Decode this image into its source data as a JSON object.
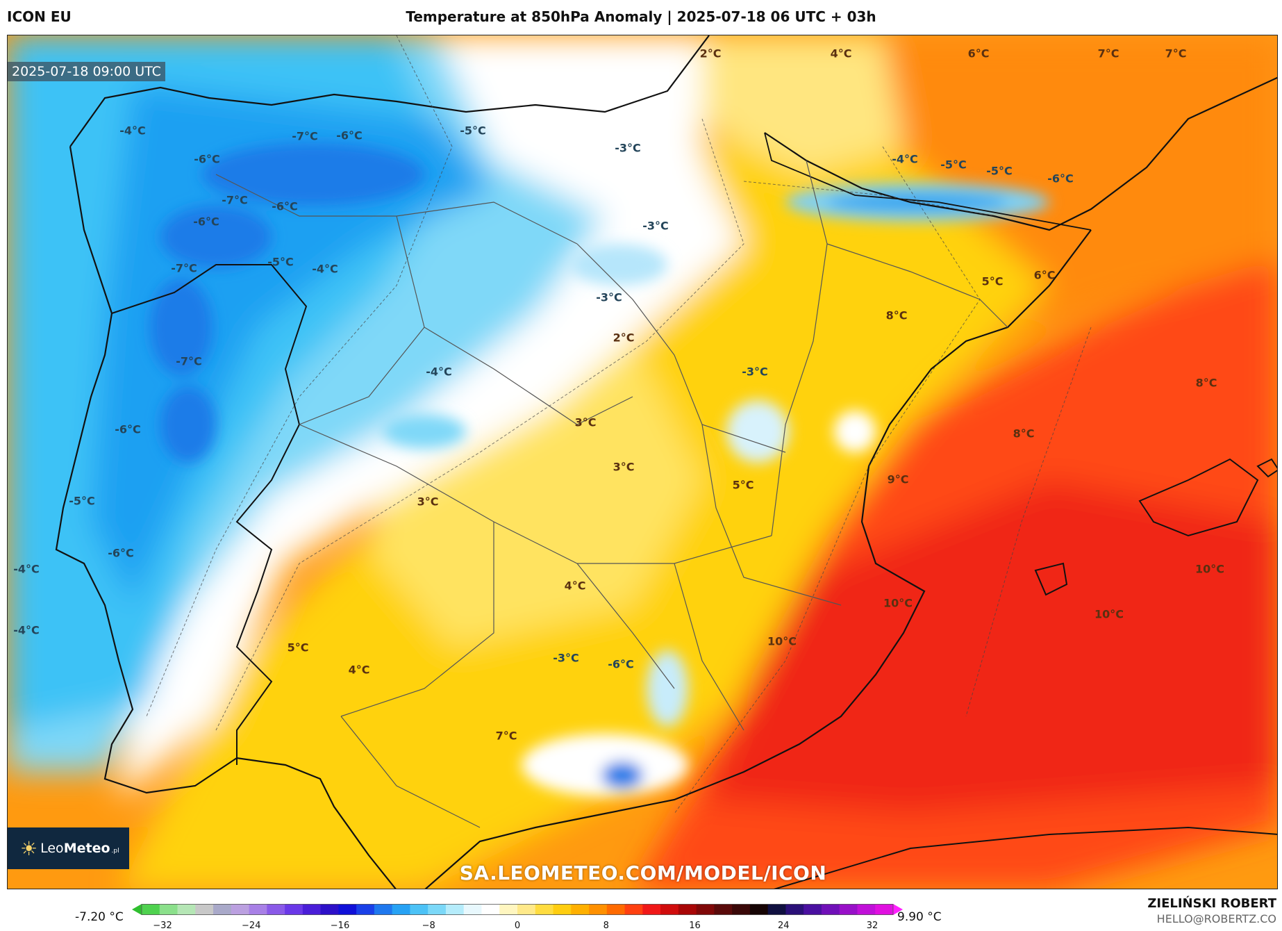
{
  "header": {
    "model": "ICON EU",
    "title": "Temperature at 850hPa Anomaly | 2025-07-18 06 UTC + 03h"
  },
  "map": {
    "valid_time": "2025-07-18 09:00 UTC",
    "watermark": "SA.LEOMETEO.COM/MODEL/ICON",
    "labels": [
      "2°C",
      "4°C",
      "6°C",
      "7°C",
      "7°C",
      "-4°C",
      "-6°C",
      "-7°C",
      "-6°C",
      "-5°C",
      "-3°C",
      "-4°C",
      "-5°C",
      "-5°C",
      "-6°C",
      "-6°C",
      "-7°C",
      "-6°C",
      "-3°C",
      "-7°C",
      "-5°C",
      "-4°C",
      "5°C",
      "6°C",
      "-3°C",
      "8°C",
      "2°C",
      "-7°C",
      "-4°C",
      "-3°C",
      "8°C",
      "-6°C",
      "3°C",
      "8°C",
      "3°C",
      "5°C",
      "9°C",
      "-5°C",
      "3°C",
      "-6°C",
      "-4°C",
      "10°C",
      "4°C",
      "10°C",
      "10°C",
      "-4°C",
      "10°C",
      "5°C",
      "-3°C",
      "-6°C",
      "4°C",
      "7°C"
    ]
  },
  "logo": {
    "brand_light": "Leo",
    "brand_bold": "Meteo",
    "suffix": ".pl"
  },
  "colorbar": {
    "min_label": "-7.20 °C",
    "max_label": "9.90 °C",
    "ticks": [
      "−32",
      "−24",
      "−16",
      "−8",
      "0",
      "8",
      "16",
      "24",
      "32"
    ],
    "colors": [
      "#2fbf2f",
      "#4fd24f",
      "#8be08b",
      "#b5e6b5",
      "#c8c8c8",
      "#a9a9c9",
      "#bba0e0",
      "#a880e6",
      "#8a5ae8",
      "#6a38e8",
      "#4a1ed8",
      "#2d10c8",
      "#1010d8",
      "#1a40e8",
      "#1f78ee",
      "#27a2f4",
      "#4cc2f6",
      "#7bd8f8",
      "#b5ecfb",
      "#e8f8fd",
      "#ffffff",
      "#fff6c0",
      "#ffe98a",
      "#ffdc40",
      "#ffcd10",
      "#ffb000",
      "#ff9000",
      "#ff6a00",
      "#ff4010",
      "#f01818",
      "#d00c0c",
      "#a80606",
      "#800808",
      "#5a0a0a",
      "#3a0808",
      "#160404",
      "#101040",
      "#2a1078",
      "#4a10a0",
      "#7010b8",
      "#9810c8",
      "#c010d8",
      "#e010e0",
      "#ff20ff"
    ]
  },
  "credits": {
    "name": "ZIELIŃSKI ROBERT",
    "email": "HELLO@ROBERTZ.CO"
  }
}
